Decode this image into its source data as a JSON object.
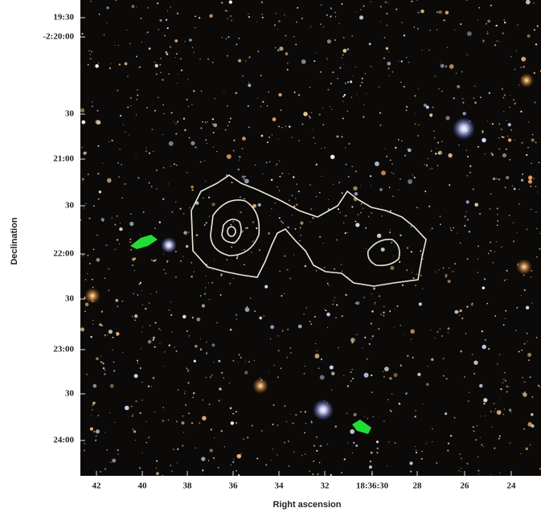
{
  "figure": {
    "y_axis_label": "Declination",
    "y_ticks": [
      "19:30",
      "-2:20:00",
      "30",
      "21:00",
      "30",
      "22:00",
      "30",
      "23:00",
      "30",
      "24:00"
    ],
    "x_axis_label": "Right ascension",
    "x_ticks": [
      "42",
      "40",
      "38",
      "36",
      "34",
      "32",
      "18:36:30",
      "28",
      "26",
      "24"
    ]
  }
}
